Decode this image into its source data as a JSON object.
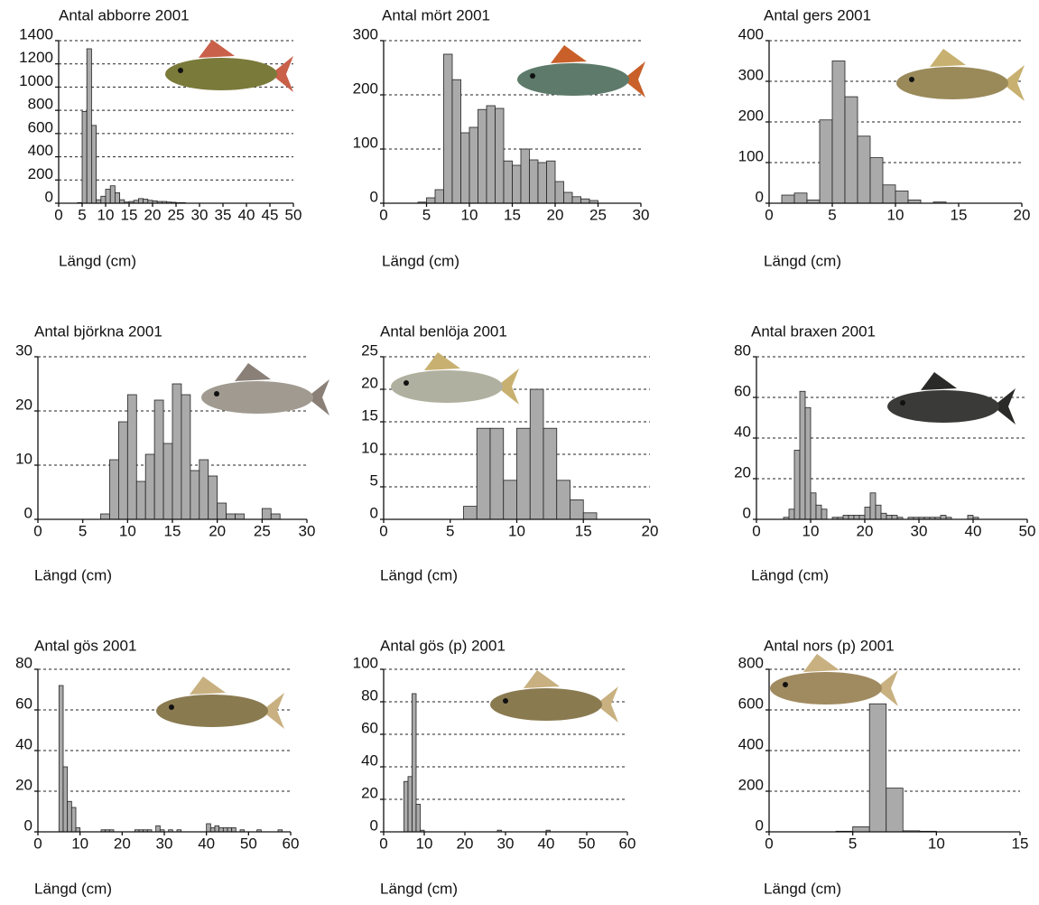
{
  "chart_data": [
    {
      "type": "histogram",
      "title": "Antal abborre 2001",
      "xlabel": "Längd (cm)",
      "color": "#aaaaaa",
      "grid": true,
      "bins": [
        4,
        5,
        6,
        7,
        8,
        9,
        10,
        11,
        12,
        13,
        14,
        15,
        16,
        17,
        18,
        19,
        20,
        21,
        22,
        23,
        24,
        25,
        26,
        27
      ],
      "values": [
        5,
        790,
        1330,
        670,
        30,
        60,
        120,
        150,
        90,
        30,
        10,
        15,
        25,
        40,
        35,
        25,
        20,
        15,
        15,
        10,
        8,
        5,
        5
      ],
      "xlim": [
        0,
        50
      ],
      "xticks": [
        0,
        5,
        10,
        15,
        20,
        25,
        30,
        35,
        40,
        45,
        50
      ],
      "ylim": [
        0,
        1400
      ],
      "yticks": [
        0,
        200,
        400,
        600,
        800,
        1000,
        1200,
        1400
      ]
    },
    {
      "type": "histogram",
      "title": "Antal mört 2001",
      "xlabel": "Längd (cm)",
      "color": "#aaaaaa",
      "grid": true,
      "bins": [
        4,
        5,
        6,
        7,
        8,
        9,
        10,
        11,
        12,
        13,
        14,
        15,
        16,
        17,
        18,
        19,
        20,
        21,
        22,
        23,
        24,
        25
      ],
      "values": [
        2,
        10,
        25,
        275,
        228,
        130,
        140,
        173,
        180,
        175,
        78,
        70,
        100,
        80,
        75,
        78,
        40,
        20,
        12,
        8,
        5
      ],
      "xlim": [
        0,
        30
      ],
      "xticks": [
        0,
        5,
        10,
        15,
        20,
        25,
        30
      ],
      "ylim": [
        0,
        300
      ],
      "yticks": [
        0,
        100,
        200,
        300
      ]
    },
    {
      "type": "histogram",
      "title": "Antal gers 2001",
      "xlabel": "Längd (cm)",
      "color": "#aaaaaa",
      "grid": true,
      "bins": [
        1,
        2,
        3,
        4,
        5,
        6,
        7,
        8,
        9,
        10,
        11,
        12,
        13,
        14
      ],
      "values": [
        20,
        25,
        8,
        205,
        350,
        262,
        165,
        112,
        45,
        30,
        8,
        0,
        3
      ],
      "xlim": [
        0,
        20
      ],
      "xticks": [
        0,
        5,
        10,
        15,
        20
      ],
      "ylim": [
        0,
        400
      ],
      "yticks": [
        0,
        100,
        200,
        300,
        400
      ]
    },
    {
      "type": "histogram",
      "title": "Antal björkna 2001",
      "xlabel": "Längd (cm)",
      "color": "#aaaaaa",
      "grid": true,
      "bins": [
        7,
        8,
        9,
        10,
        11,
        12,
        13,
        14,
        15,
        16,
        17,
        18,
        19,
        20,
        21,
        22,
        23,
        24,
        25,
        26,
        27
      ],
      "values": [
        1,
        11,
        18,
        23,
        7,
        12,
        22,
        14,
        25,
        23,
        9,
        11,
        8,
        3,
        1,
        1,
        0,
        0,
        2,
        1
      ],
      "xlim": [
        0,
        30
      ],
      "xticks": [
        0,
        5,
        10,
        15,
        20,
        25,
        30
      ],
      "ylim": [
        0,
        30
      ],
      "yticks": [
        0,
        10,
        20,
        30
      ]
    },
    {
      "type": "histogram",
      "title": "Antal benlöja 2001",
      "xlabel": "Längd (cm)",
      "color": "#aaaaaa",
      "grid": true,
      "bins": [
        6,
        7,
        8,
        9,
        10,
        11,
        12,
        13,
        14,
        15,
        16
      ],
      "values": [
        2,
        14,
        14,
        6,
        14,
        20,
        14,
        6,
        3,
        1
      ],
      "xlim": [
        0,
        20
      ],
      "xticks": [
        0,
        5,
        10,
        15,
        20
      ],
      "ylim": [
        0,
        25
      ],
      "yticks": [
        0,
        5,
        10,
        15,
        20,
        25
      ]
    },
    {
      "type": "histogram",
      "title": "Antal braxen 2001",
      "xlabel": "Längd (cm)",
      "color": "#aaaaaa",
      "grid": true,
      "bins": [
        5,
        6,
        7,
        8,
        9,
        10,
        11,
        12,
        13,
        14,
        15,
        16,
        17,
        18,
        19,
        20,
        21,
        22,
        23,
        24,
        25,
        26,
        27,
        28,
        29,
        30,
        31,
        32,
        33,
        34,
        35,
        36,
        37,
        38,
        39,
        40,
        41
      ],
      "values": [
        1,
        5,
        34,
        63,
        55,
        13,
        7,
        5,
        0,
        1,
        1,
        2,
        2,
        2,
        2,
        6,
        13,
        7,
        3,
        2,
        2,
        1,
        0,
        1,
        1,
        1,
        1,
        1,
        1,
        2,
        1,
        0,
        0,
        0,
        2,
        1
      ],
      "xlim": [
        0,
        50
      ],
      "xticks": [
        0,
        10,
        20,
        30,
        40,
        50
      ],
      "ylim": [
        0,
        80
      ],
      "yticks": [
        0,
        20,
        40,
        60,
        80
      ]
    },
    {
      "type": "histogram",
      "title": "Antal gös 2001",
      "xlabel": "Längd (cm)",
      "color": "#aaaaaa",
      "grid": true,
      "bins": [
        5,
        6,
        7,
        8,
        9,
        10,
        11,
        12,
        13,
        14,
        15,
        16,
        17,
        18,
        19,
        20,
        21,
        22,
        23,
        24,
        25,
        26,
        27,
        28,
        29,
        30,
        31,
        32,
        33,
        34,
        35,
        36,
        37,
        38,
        39,
        40,
        41,
        42,
        43,
        44,
        45,
        46,
        47,
        48,
        49,
        50,
        51,
        52,
        53,
        54,
        55,
        56,
        57,
        58
      ],
      "values": [
        72,
        32,
        15,
        12,
        2,
        0,
        0,
        0,
        0,
        0,
        1,
        1,
        1,
        0,
        0,
        0,
        0,
        0,
        1,
        1,
        1,
        1,
        0,
        3,
        1,
        0,
        1,
        0,
        1,
        0,
        0,
        0,
        0,
        0,
        0,
        4,
        2,
        3,
        2,
        2,
        2,
        2,
        0,
        1,
        0,
        0,
        0,
        1,
        0,
        0,
        0,
        0,
        1
      ],
      "xlim": [
        0,
        60
      ],
      "xticks": [
        0,
        10,
        20,
        30,
        40,
        50,
        60
      ],
      "ylim": [
        0,
        80
      ],
      "yticks": [
        0,
        20,
        40,
        60,
        80
      ]
    },
    {
      "type": "histogram",
      "title": "Antal gös (p) 2001",
      "xlabel": "Längd (cm)",
      "color": "#aaaaaa",
      "grid": true,
      "bins": [
        5,
        6,
        7,
        8,
        9,
        10,
        11,
        12,
        13,
        14,
        15,
        16,
        17,
        18,
        19,
        20,
        21,
        22,
        23,
        24,
        25,
        26,
        27,
        28,
        29,
        30,
        31,
        32,
        33,
        34,
        35,
        36,
        37,
        38,
        39,
        40,
        41
      ],
      "values": [
        31,
        34,
        85,
        17,
        1,
        0,
        0,
        0,
        0,
        0,
        0,
        0,
        0,
        0,
        0,
        0,
        0,
        0,
        0,
        0,
        0,
        0,
        0,
        1,
        0,
        0,
        0,
        0,
        0,
        0,
        0,
        0,
        0,
        0,
        0,
        1
      ],
      "xlim": [
        0,
        60
      ],
      "xticks": [
        0,
        10,
        20,
        30,
        40,
        50,
        60
      ],
      "ylim": [
        0,
        100
      ],
      "yticks": [
        0,
        20,
        40,
        60,
        80,
        100
      ]
    },
    {
      "type": "histogram",
      "title": "Antal nors (p) 2001",
      "xlabel": "Längd (cm)",
      "color": "#aaaaaa",
      "grid": true,
      "bins": [
        4,
        5,
        6,
        7,
        8,
        9,
        10
      ],
      "values": [
        3,
        25,
        630,
        215,
        5,
        3
      ],
      "xlim": [
        0,
        15
      ],
      "xticks": [
        0,
        5,
        10,
        15
      ],
      "ylim": [
        0,
        800
      ],
      "yticks": [
        0,
        200,
        400,
        600,
        800
      ]
    }
  ]
}
